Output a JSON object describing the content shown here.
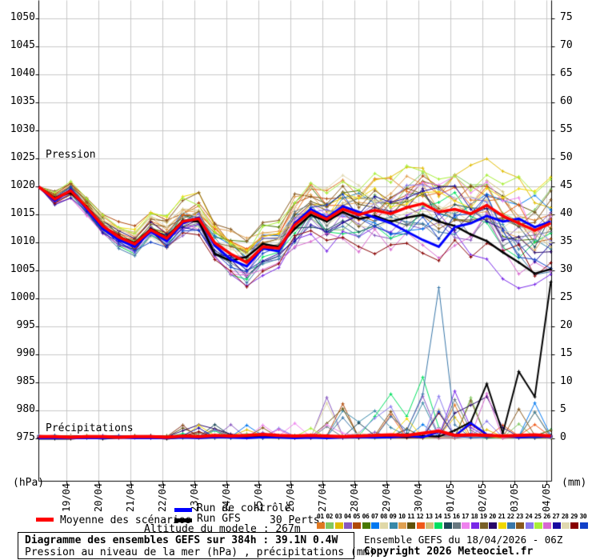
{
  "chart_data": {
    "type": "line",
    "title": "Diagramme des ensembles GEFS sur 384h : 39.1N 0.4W",
    "subtitle": "Pression au niveau de la mer (hPa) , précipitations (mm)",
    "x": {
      "tick_labels": [
        "19/04",
        "20/04",
        "21/04",
        "22/04",
        "23/04",
        "24/04",
        "25/04",
        "26/04",
        "27/04",
        "28/04",
        "29/04",
        "30/04",
        "01/05",
        "02/05",
        "03/05",
        "04/05"
      ],
      "run_start": "18/04/2026 - 06Z",
      "hours": 384,
      "step_hours": 12
    },
    "left_axis": {
      "unit": "(hPa)",
      "annotation": "Pression",
      "min": 975,
      "max": 1050,
      "step": 5
    },
    "right_axis": {
      "unit": "(mm)",
      "annotation": "Précipitations",
      "min": 0,
      "max": 75,
      "step": 5
    },
    "grid": true,
    "series": {
      "mean": {
        "label": "Moyenne des scénarios",
        "color": "#ff0000",
        "pressure": [
          1020,
          1017.8,
          1019.3,
          1016.3,
          1013,
          1011,
          1009.8,
          1012.3,
          1010.8,
          1013.8,
          1014.3,
          1010,
          1008,
          1006.5,
          1009.3,
          1009,
          1013.2,
          1015.5,
          1014.2,
          1016,
          1015,
          1015.8,
          1015.2,
          1016.3,
          1017,
          1015.5,
          1016,
          1015.2,
          1016.7,
          1014.8,
          1013.5,
          1012.2,
          1013.5
        ],
        "precip": [
          0.4,
          0.4,
          0.3,
          0.4,
          0.4,
          0.3,
          0.4,
          0.4,
          0.3,
          0.5,
          0.4,
          0.6,
          0.5,
          0.6,
          0.8,
          0.6,
          0.5,
          0.6,
          0.5,
          0.4,
          0.5,
          0.6,
          0.7,
          0.6,
          1.0,
          1.4,
          0.6,
          0.7,
          0.6,
          0.5,
          0.6,
          0.7,
          0.5
        ]
      },
      "control": {
        "label": "Run de contrôle",
        "color": "#0000ff",
        "pressure": [
          1020,
          1017.5,
          1019.5,
          1016,
          1012.5,
          1010.5,
          1009.3,
          1012,
          1010.3,
          1013.5,
          1014.5,
          1009.5,
          1007,
          1005.8,
          1009,
          1008.5,
          1013.5,
          1016,
          1014.5,
          1016.5,
          1015.5,
          1014.5,
          1013.5,
          1012,
          1010.5,
          1009.3,
          1012.8,
          1013.5,
          1014.8,
          1013.8,
          1014.3,
          1012.8,
          1013.8
        ],
        "precip": [
          0.1,
          0.1,
          0.1,
          0.1,
          0.1,
          0.2,
          0.1,
          0.1,
          0.1,
          0.2,
          0.1,
          0.3,
          0.2,
          0.1,
          0.3,
          0.2,
          0.1,
          0.2,
          0.1,
          0.2,
          0.3,
          0.2,
          0.3,
          0.5,
          0.3,
          1.2,
          0.5,
          2.8,
          0.8,
          0.4,
          0.3,
          0.5,
          0.3
        ]
      },
      "gfs": {
        "label": "Run GFS",
        "color": "#000000",
        "pressure": [
          1020,
          1018,
          1019,
          1016.5,
          1013,
          1011,
          1010,
          1012.5,
          1011,
          1014,
          1013.8,
          1008,
          1006.8,
          1007.5,
          1009.8,
          1009.3,
          1012.5,
          1015,
          1013.8,
          1015.5,
          1014.3,
          1014.8,
          1013.8,
          1014.5,
          1015,
          1013.8,
          1013,
          1011.5,
          1010.3,
          1008.3,
          1006.5,
          1004.5,
          1005.3
        ],
        "precip": [
          0,
          0,
          0,
          0.2,
          0,
          0.2,
          0.3,
          0.2,
          0,
          0.3,
          0.2,
          0.6,
          0.3,
          0.2,
          0.5,
          0.3,
          0.2,
          0.3,
          0.2,
          0.3,
          0.2,
          0.3,
          0.4,
          0.3,
          0.5,
          0.4,
          1.5,
          3,
          9.8,
          1,
          12,
          7.5,
          28
        ]
      }
    },
    "members": {
      "count": 30,
      "legend_label": "30 Perts.",
      "labels": [
        "01",
        "02",
        "03",
        "04",
        "05",
        "06",
        "07",
        "08",
        "09",
        "10",
        "11",
        "12",
        "13",
        "14",
        "15",
        "16",
        "17",
        "18",
        "19",
        "20",
        "21",
        "22",
        "23",
        "24",
        "25",
        "26",
        "27",
        "28",
        "29",
        "30"
      ],
      "colors": [
        "#e07820",
        "#80c860",
        "#e0bc00",
        "#8858c0",
        "#b04808",
        "#487800",
        "#0078f0",
        "#e0d8a8",
        "#3888a8",
        "#e0a050",
        "#605008",
        "#f05818",
        "#d0c078",
        "#00e060",
        "#1c4858",
        "#687880",
        "#ee82ee",
        "#7828e8",
        "#786028",
        "#280868",
        "#f0d800",
        "#3876a8",
        "#88581c",
        "#8878ee",
        "#a8ee38",
        "#d868d0",
        "#1808a0",
        "#e0d8b0",
        "#880000",
        "#1040c8"
      ],
      "bias": [
        0.9,
        0.3,
        0.5,
        -0.5,
        0.6,
        0.4,
        0.2,
        0,
        -0.2,
        0.7,
        0.1,
        0.6,
        0.2,
        -0.1,
        -0.3,
        -0.2,
        -0.8,
        -0.6,
        0.3,
        -0.4,
        0.4,
        -0.5,
        0.8,
        -0.7,
        1.0,
        -0.9,
        -0.3,
        0.1,
        -1.0,
        -0.15
      ],
      "precip_features": {
        "9": {
          "20": 3,
          "21": 5,
          "22": 2
        },
        "14": {
          "21": 4,
          "22": 8,
          "23": 4,
          "24": 11,
          "25": 2
        },
        "16": {
          "26": 7,
          "27": 1.5
        },
        "17": {
          "18": 2.5,
          "19": 1
        },
        "18": {
          "26": 8.5,
          "27": 2
        },
        "20": {
          "27": 6,
          "28": 7.5,
          "29": 2
        },
        "22": {
          "22": 4,
          "23": 1.5,
          "24": 8,
          "25": 27,
          "26": 2.5
        }
      }
    }
  },
  "legend": {
    "mean_label": "Moyenne des scénarios",
    "control_label": "Run de contrôle",
    "gfs_label": "Run GFS",
    "perts_label": "30 Perts.",
    "altitude": "Altitude du modele : 267m",
    "mean_color": "#ff0000",
    "control_color": "#0000ff",
    "gfs_color": "#000000"
  },
  "footer": {
    "title": "Diagramme des ensembles GEFS sur 384h : 39.1N 0.4W",
    "subtitle": "Pression au niveau de la mer (hPa) , précipitations (mm)",
    "run_info": "Ensemble GEFS du 18/04/2026 - 06Z",
    "copyright": "Copyright 2026 Meteociel.fr"
  }
}
